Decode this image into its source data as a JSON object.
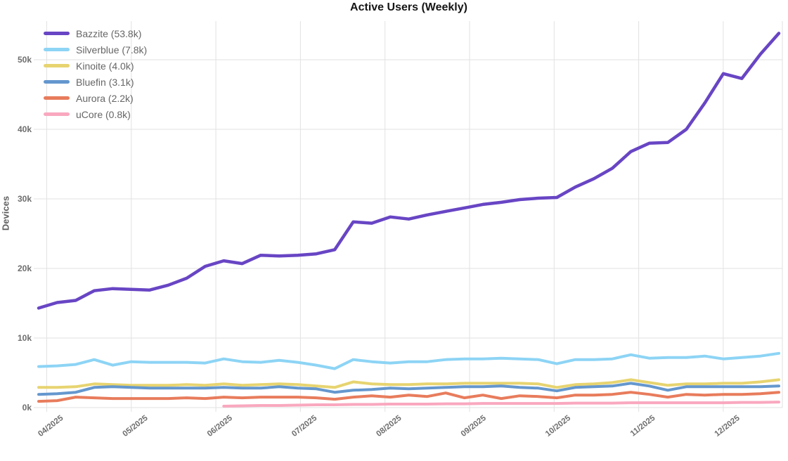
{
  "chart_data": {
    "type": "line",
    "title": "Active Users (Weekly)",
    "ylabel": "Devices",
    "xlabel": "",
    "x_tick_labels": [
      "04/2025",
      "05/2025",
      "06/2025",
      "07/2025",
      "08/2025",
      "09/2025",
      "10/2025",
      "11/2025",
      "12/2025"
    ],
    "y_tick_labels": [
      "0k",
      "10k",
      "20k",
      "30k",
      "40k",
      "50k"
    ],
    "y_tick_values": [
      0,
      10,
      20,
      30,
      40,
      50
    ],
    "ylim": [
      0,
      55.5
    ],
    "values_unit": "thousands of devices",
    "x_unit": "weeks (late March 2025 through mid December 2025)",
    "grid": true,
    "legend_position": "top-left",
    "series": [
      {
        "name": "Bazzite",
        "legend_label": "Bazzite (53.8k)",
        "current_value": "53.8k",
        "color": "#6845c4",
        "line_width": 4.5,
        "values": [
          14.3,
          15.1,
          15.4,
          16.8,
          17.1,
          17.0,
          16.9,
          17.6,
          18.6,
          20.3,
          21.1,
          20.7,
          21.9,
          21.8,
          21.9,
          22.1,
          22.7,
          26.7,
          26.5,
          27.4,
          27.1,
          27.7,
          28.2,
          28.7,
          29.2,
          29.5,
          29.9,
          30.1,
          30.2,
          31.7,
          32.9,
          34.4,
          36.8,
          38.0,
          38.1,
          40.0,
          43.8,
          48.0,
          47.3,
          50.8,
          53.8
        ]
      },
      {
        "name": "Silverblue",
        "legend_label": "Silverblue (7.8k)",
        "current_value": "7.8k",
        "color": "#8dd4f5",
        "line_width": 4,
        "values": [
          5.9,
          6.0,
          6.2,
          6.9,
          6.1,
          6.6,
          6.5,
          6.5,
          6.5,
          6.4,
          7.0,
          6.6,
          6.5,
          6.8,
          6.5,
          6.1,
          5.6,
          6.9,
          6.6,
          6.4,
          6.6,
          6.6,
          6.9,
          7.0,
          7.0,
          7.1,
          7.0,
          6.9,
          6.3,
          6.9,
          6.9,
          7.0,
          7.6,
          7.1,
          7.2,
          7.2,
          7.4,
          7.0,
          7.2,
          7.4,
          7.8
        ]
      },
      {
        "name": "Kinoite",
        "legend_label": "Kinoite (4.0k)",
        "current_value": "4.0k",
        "color": "#e7d470",
        "line_width": 4,
        "values": [
          2.9,
          2.9,
          3.0,
          3.4,
          3.3,
          3.2,
          3.2,
          3.2,
          3.3,
          3.2,
          3.4,
          3.2,
          3.3,
          3.4,
          3.3,
          3.1,
          2.9,
          3.7,
          3.4,
          3.3,
          3.3,
          3.4,
          3.4,
          3.5,
          3.5,
          3.5,
          3.5,
          3.4,
          2.9,
          3.3,
          3.4,
          3.6,
          4.0,
          3.6,
          3.2,
          3.4,
          3.4,
          3.5,
          3.5,
          3.7,
          4.0
        ]
      },
      {
        "name": "Bluefin",
        "legend_label": "Bluefin (3.1k)",
        "current_value": "3.1k",
        "color": "#6497ce",
        "line_width": 4,
        "values": [
          1.9,
          2.0,
          2.2,
          2.9,
          3.0,
          2.9,
          2.8,
          2.8,
          2.8,
          2.8,
          2.9,
          2.8,
          2.8,
          3.0,
          2.8,
          2.7,
          2.2,
          2.5,
          2.6,
          2.8,
          2.7,
          2.8,
          2.9,
          3.0,
          3.0,
          3.1,
          2.9,
          2.8,
          2.4,
          2.9,
          3.0,
          3.1,
          3.5,
          3.1,
          2.5,
          3.0,
          3.0,
          3.0,
          3.0,
          3.0,
          3.1
        ]
      },
      {
        "name": "Aurora",
        "legend_label": "Aurora (2.2k)",
        "current_value": "2.2k",
        "color": "#e87c5c",
        "line_width": 4,
        "values": [
          0.9,
          1.0,
          1.5,
          1.4,
          1.3,
          1.3,
          1.3,
          1.3,
          1.4,
          1.3,
          1.5,
          1.4,
          1.5,
          1.5,
          1.5,
          1.4,
          1.2,
          1.5,
          1.7,
          1.5,
          1.8,
          1.6,
          2.1,
          1.4,
          1.8,
          1.3,
          1.7,
          1.6,
          1.4,
          1.8,
          1.8,
          1.9,
          2.2,
          1.9,
          1.5,
          1.9,
          1.8,
          1.9,
          1.9,
          2.0,
          2.2
        ]
      },
      {
        "name": "uCore",
        "legend_label": "uCore (0.8k)",
        "current_value": "0.8k",
        "color": "#f9a8bf",
        "line_width": 4,
        "values": [
          null,
          null,
          null,
          null,
          null,
          null,
          null,
          null,
          null,
          null,
          0.2,
          0.25,
          0.3,
          0.3,
          0.35,
          0.4,
          0.4,
          0.45,
          0.45,
          0.5,
          0.5,
          0.5,
          0.55,
          0.55,
          0.6,
          0.6,
          0.6,
          0.6,
          0.6,
          0.65,
          0.65,
          0.65,
          0.7,
          0.7,
          0.7,
          0.7,
          0.7,
          0.7,
          0.75,
          0.75,
          0.8
        ]
      }
    ]
  },
  "colors": {
    "background": "#ffffff",
    "grid": "#e2e2e2",
    "tick_text": "#6e6e6e",
    "title_text": "#151515",
    "legend_text": "#666666",
    "y_axis_label_text": "#5f5f5f"
  }
}
